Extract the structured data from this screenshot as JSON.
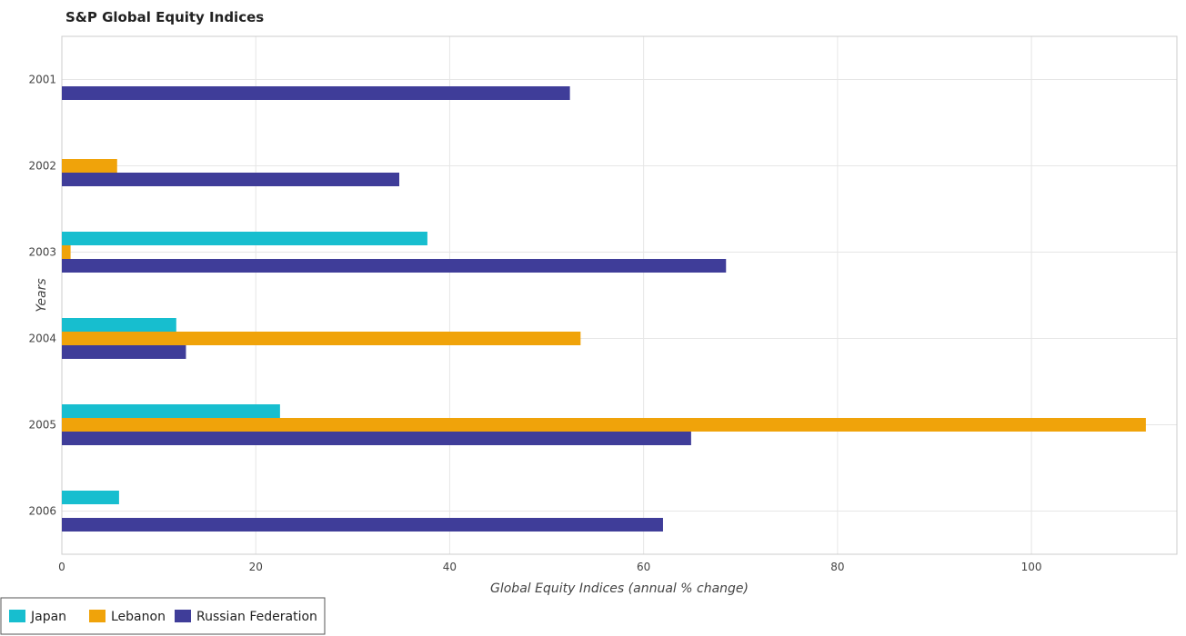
{
  "chart_data": {
    "type": "bar",
    "orientation": "horizontal",
    "title": "S&P Global Equity Indices",
    "xlabel": "Global Equity Indices (annual % change)",
    "ylabel": "Years",
    "categories": [
      "2001",
      "2002",
      "2003",
      "2004",
      "2005",
      "2006"
    ],
    "series": [
      {
        "name": "Japan",
        "color": "#17becf",
        "values": [
          0,
          0,
          37.7,
          11.8,
          22.5,
          5.9
        ]
      },
      {
        "name": "Lebanon",
        "color": "#f0a30a",
        "values": [
          0,
          5.7,
          0.9,
          53.5,
          111.8,
          0
        ]
      },
      {
        "name": "Russian Federation",
        "color": "#3f3d99",
        "values": [
          52.4,
          34.8,
          68.5,
          12.8,
          64.9,
          62.0
        ]
      }
    ],
    "xlim": [
      0,
      115
    ],
    "xticks": [
      0,
      20,
      40,
      60,
      80,
      100
    ],
    "grid": true,
    "legend_position": "bottom-left"
  }
}
